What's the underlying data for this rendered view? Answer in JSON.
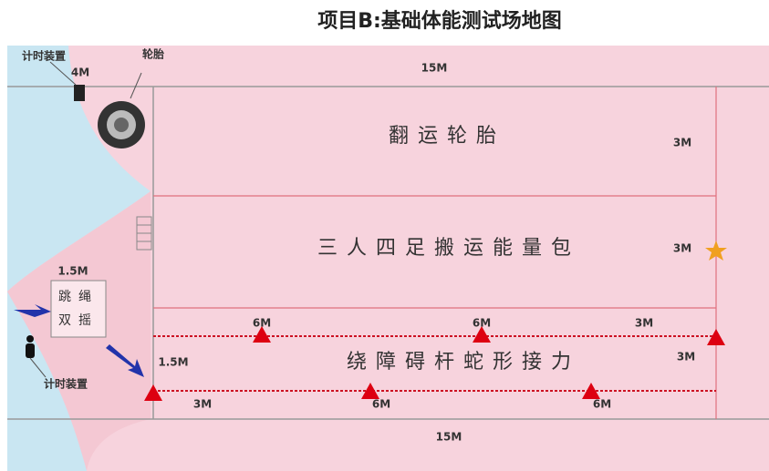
{
  "title": "项目B:基础体能测试场地图",
  "timer_top": "计时装置",
  "timer_top_dist": "4M",
  "tire_label": "轮胎",
  "top_length": "15M",
  "bottom_length": "15M",
  "lanes": [
    {
      "name": "翻运轮胎",
      "width": "3M"
    },
    {
      "name": "三人四足搬运能量包",
      "width": "3M"
    },
    {
      "name": "绕障碍杆蛇形接力",
      "width": "3M",
      "start_offset": "1.5M",
      "top_gaps": [
        "6M",
        "6M",
        "3M"
      ],
      "bottom_gaps": [
        "3M",
        "6M",
        "6M"
      ]
    }
  ],
  "rope": {
    "dist": "1.5M",
    "line1": "跳绳",
    "line2": "双摇"
  },
  "timer_bottom": "计时装置"
}
